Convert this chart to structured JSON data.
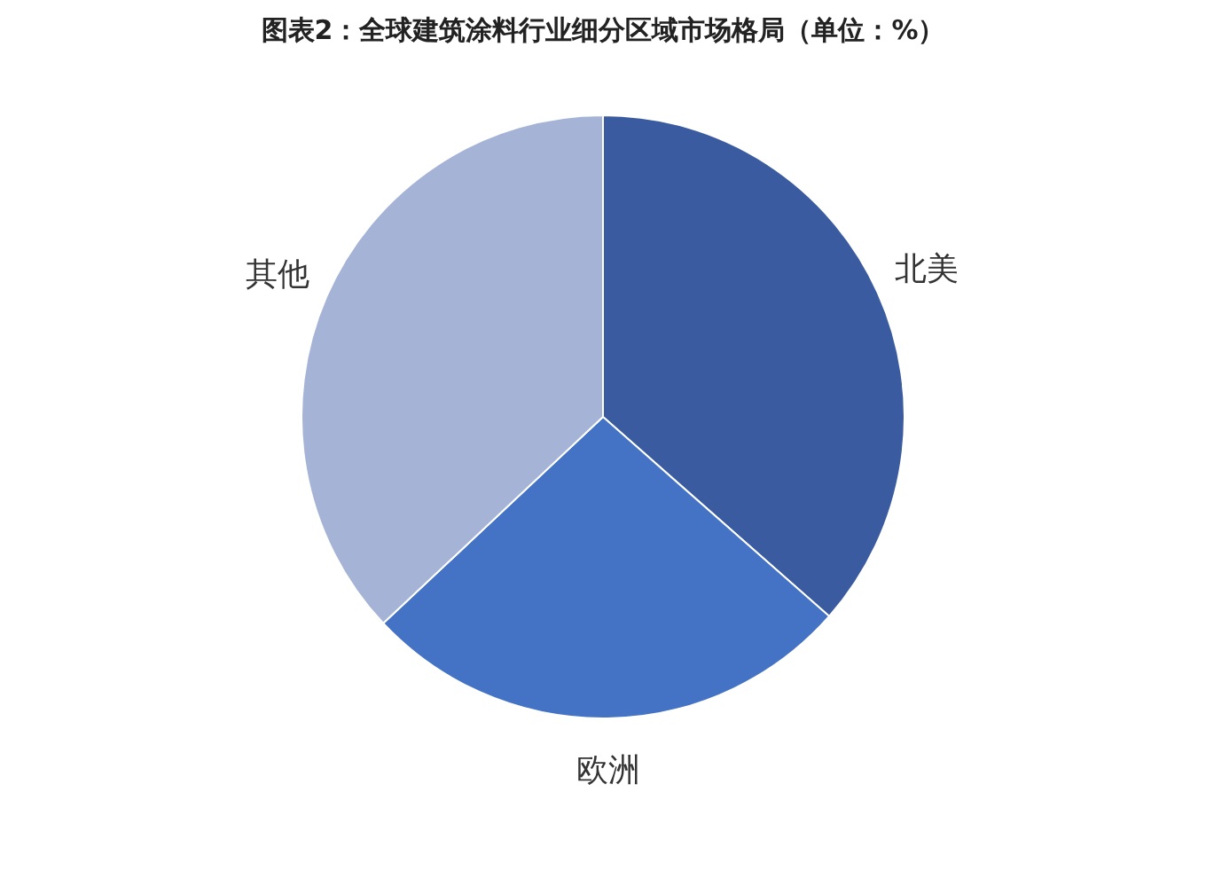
{
  "chart_data": {
    "type": "pie",
    "title": "图表2：全球建筑涂料行业细分区域市场格局（单位：%）",
    "categories": [
      "北美",
      "欧洲",
      "其他"
    ],
    "values": [
      36.5,
      26.5,
      37
    ],
    "colors": [
      "#3a5ba0",
      "#4472c4",
      "#a5b3d6"
    ]
  }
}
